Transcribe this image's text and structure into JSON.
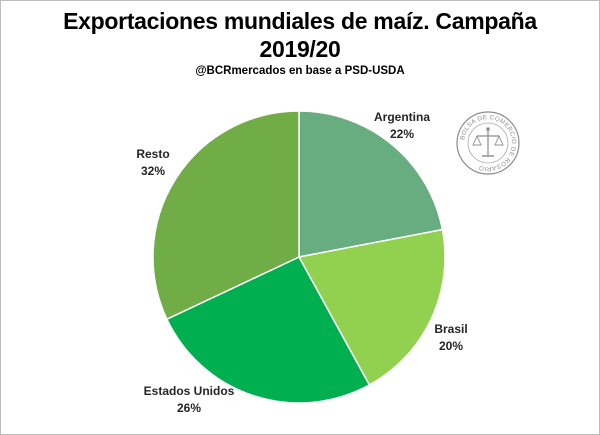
{
  "header": {
    "title_line1": "Exportaciones mundiales de maíz. Campaña",
    "title_line2": "2019/20",
    "subtitle": "@BCRmercados  en base a PSD-USDA"
  },
  "logo": {
    "text": "BOLSA DE COMERCIO DE ROSARIO",
    "icon": "bcr-seal-icon"
  },
  "chart_data": {
    "type": "pie",
    "title": "Exportaciones mundiales de maíz. Campaña 2019/20",
    "slices": [
      {
        "label": "Argentina",
        "value": 22,
        "pct_label": "22%",
        "color": "#67ad7f"
      },
      {
        "label": "Brasil",
        "value": 20,
        "pct_label": "20%",
        "color": "#92d050"
      },
      {
        "label": "Estados  Unidos",
        "value": 26,
        "pct_label": "26%",
        "color": "#00b050"
      },
      {
        "label": "Resto",
        "value": 32,
        "pct_label": "32%",
        "color": "#70ad47"
      }
    ],
    "start_angle_deg": 0,
    "direction": "clockwise",
    "legend": "none",
    "data_labels": "outside"
  }
}
